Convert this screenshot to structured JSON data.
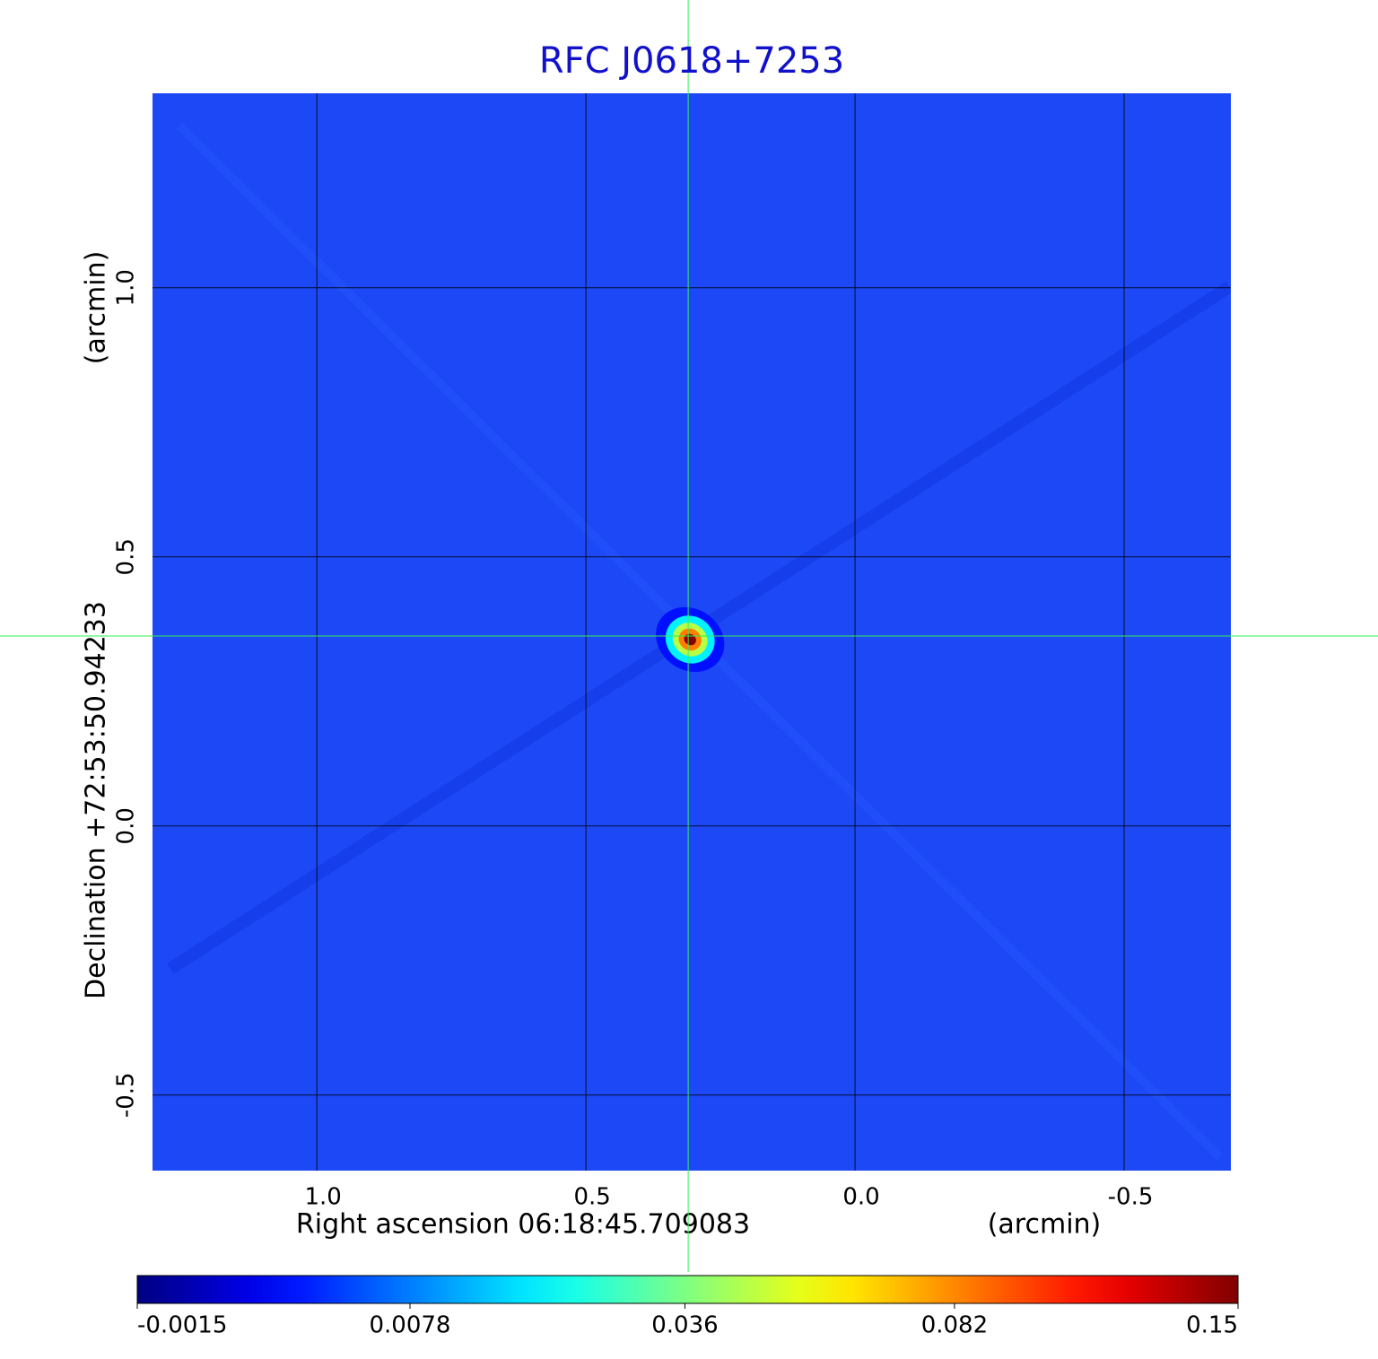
{
  "chart_data": {
    "type": "image",
    "title": "RFC J0618+7253",
    "xlabel": "Right ascension  06:18:45.709083",
    "xunit": "(arcmin)",
    "ylabel": "Declination  +72:53:50.94233",
    "yunit": "(arcmin)",
    "xlim": [
      1.307,
      -0.7
    ],
    "ylim": [
      -0.642,
      1.363
    ],
    "xticks": [
      {
        "value": 1,
        "label": "1.0"
      },
      0.5,
      {
        "value": 0,
        "label": "0.0"
      },
      -0.5
    ],
    "yticks": [
      {
        "value": -0.5,
        "label": "-0.5"
      },
      {
        "value": 0,
        "label": "0.0"
      },
      0.5,
      {
        "value": 1,
        "label": "1.0"
      }
    ],
    "grid": true,
    "background_color": "#1c48f6",
    "crosshair_color": "#33ee55",
    "title_color": "#1111cc",
    "source": {
      "x": 0.31,
      "y": 0.353,
      "peak": 0.15
    },
    "colorbar": {
      "colormap": "jet",
      "scale": "sqrt",
      "lim": [
        -0.0015,
        0.15
      ],
      "ticks": [
        -0.0015,
        0.0078,
        0.036,
        0.082,
        0.15
      ]
    }
  }
}
